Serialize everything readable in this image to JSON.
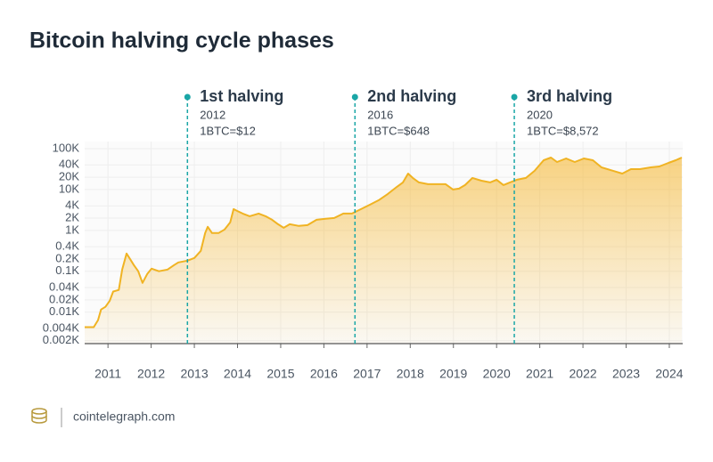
{
  "chart_data": {
    "type": "area",
    "title": "Bitcoin halving cycle phases",
    "x": [
      2010.46,
      2010.67,
      2010.77,
      2010.84,
      2010.94,
      2011.04,
      2011.12,
      2011.25,
      2011.33,
      2011.43,
      2011.52,
      2011.6,
      2011.7,
      2011.8,
      2011.91,
      2012.01,
      2012.18,
      2012.38,
      2012.53,
      2012.63,
      2012.84,
      2013.0,
      2013.15,
      2013.25,
      2013.31,
      2013.41,
      2013.56,
      2013.7,
      2013.83,
      2013.91,
      2013.99,
      2014.12,
      2014.28,
      2014.49,
      2014.65,
      2014.8,
      2014.94,
      2015.07,
      2015.21,
      2015.42,
      2015.62,
      2015.83,
      2016.04,
      2016.24,
      2016.45,
      2016.65,
      2016.86,
      2017.07,
      2017.27,
      2017.48,
      2017.69,
      2017.83,
      2017.95,
      2018.06,
      2018.2,
      2018.41,
      2018.61,
      2018.82,
      2018.99,
      2019.13,
      2019.27,
      2019.44,
      2019.65,
      2019.85,
      2020.0,
      2020.16,
      2020.31,
      2020.47,
      2020.68,
      2020.88,
      2021.09,
      2021.26,
      2021.4,
      2021.61,
      2021.81,
      2022.02,
      2022.23,
      2022.43,
      2022.7,
      2022.91,
      2023.11,
      2023.32,
      2023.57,
      2023.77,
      2023.98,
      2024.15,
      2024.29
    ],
    "values": [
      4.3,
      4.3,
      6.4,
      11.6,
      13.5,
      19,
      32,
      35,
      110,
      272,
      192,
      142,
      100,
      52,
      86,
      116,
      100,
      110,
      142,
      165,
      182,
      212,
      316,
      861,
      1222,
      861,
      861,
      1052,
      1570,
      3327,
      3006,
      2588,
      2228,
      2588,
      2228,
      1823,
      1419,
      1161,
      1419,
      1284,
      1349,
      1823,
      1919,
      2014,
      2588,
      2588,
      3327,
      4266,
      5483,
      7780,
      11610,
      14930,
      24600,
      19180,
      14930,
      13490,
      13490,
      13490,
      10000,
      10520,
      12850,
      19180,
      16480,
      14930,
      17340,
      12850,
      14930,
      17340,
      19180,
      28640,
      52120,
      60650,
      47210,
      57680,
      47210,
      57680,
      52120,
      34910,
      28640,
      24600,
      31620,
      31620,
      34910,
      36730,
      44870,
      52120,
      60650
    ],
    "color": "#f0b323",
    "log_y": true,
    "grid": true,
    "xlim": [
      2010.46,
      2024.31
    ],
    "xticks": [
      2011,
      2012,
      2013,
      2014,
      2015,
      2016,
      2017,
      2018,
      2019,
      2020,
      2021,
      2022,
      2023,
      2024
    ],
    "ylim": [
      1.7,
      100000
    ],
    "yticks": [
      {
        "value": 100000,
        "label": "100K"
      },
      {
        "value": 40000,
        "label": "40K"
      },
      {
        "value": 20000,
        "label": "20K"
      },
      {
        "value": 10000,
        "label": "10K"
      },
      {
        "value": 4000,
        "label": "4K"
      },
      {
        "value": 2000,
        "label": "2K"
      },
      {
        "value": 1000,
        "label": "1K"
      },
      {
        "value": 400,
        "label": "0.4K"
      },
      {
        "value": 200,
        "label": "0.2K"
      },
      {
        "value": 100,
        "label": "0.1K"
      },
      {
        "value": 40,
        "label": "0.04K"
      },
      {
        "value": 20,
        "label": "0.02K"
      },
      {
        "value": 10,
        "label": "0.01K"
      },
      {
        "value": 4,
        "label": "0.004K"
      },
      {
        "value": 2,
        "label": "0.002K"
      }
    ],
    "annotations": [
      {
        "x": 2012.84,
        "label": "1st halving",
        "year": "2012",
        "price": "1BTC=$12"
      },
      {
        "x": 2016.72,
        "label": "2nd halving",
        "year": "2016",
        "price": "1BTC=$648"
      },
      {
        "x": 2020.41,
        "label": "3rd halving",
        "year": "2020",
        "price": "1BTC=$8,572"
      }
    ],
    "annotation_color": "#1aa6a6",
    "source": "cointelegraph.com"
  }
}
